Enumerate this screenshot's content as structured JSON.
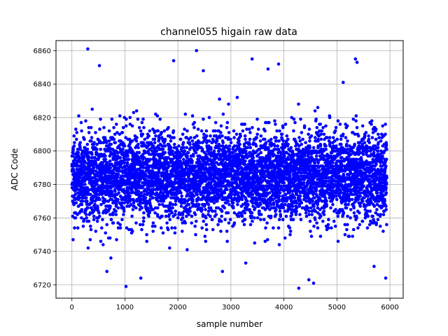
{
  "chart_data": {
    "type": "scatter",
    "title": "channel055 higain raw data",
    "xlabel": "sample number",
    "ylabel": "ADC Code",
    "xlim": [
      -300,
      6250
    ],
    "ylim": [
      6712,
      6866
    ],
    "xticks": [
      0,
      1000,
      2000,
      3000,
      4000,
      5000,
      6000
    ],
    "yticks": [
      6720,
      6740,
      6760,
      6780,
      6800,
      6820,
      6840,
      6860
    ],
    "grid": true,
    "marker_color": "#0000ff",
    "series": [
      {
        "points_note_free": true,
        "x_range": [
          0,
          5940
        ],
        "n_points": 6000,
        "core_mean": 6785,
        "core_std": 13,
        "outliers": [
          {
            "x": 300,
            "y": 6861
          },
          {
            "x": 2350,
            "y": 6860
          },
          {
            "x": 3400,
            "y": 6855
          },
          {
            "x": 5350,
            "y": 6855
          },
          {
            "x": 1920,
            "y": 6854
          },
          {
            "x": 520,
            "y": 6851
          },
          {
            "x": 3900,
            "y": 6852
          },
          {
            "x": 5380,
            "y": 6853
          },
          {
            "x": 2480,
            "y": 6848
          },
          {
            "x": 3700,
            "y": 6849
          },
          {
            "x": 1020,
            "y": 6719
          },
          {
            "x": 4280,
            "y": 6718
          },
          {
            "x": 4560,
            "y": 6721
          },
          {
            "x": 4470,
            "y": 6723
          },
          {
            "x": 1300,
            "y": 6724
          },
          {
            "x": 5920,
            "y": 6724
          },
          {
            "x": 2840,
            "y": 6728
          },
          {
            "x": 660,
            "y": 6728
          },
          {
            "x": 3280,
            "y": 6733
          },
          {
            "x": 5700,
            "y": 6731
          }
        ]
      }
    ]
  }
}
